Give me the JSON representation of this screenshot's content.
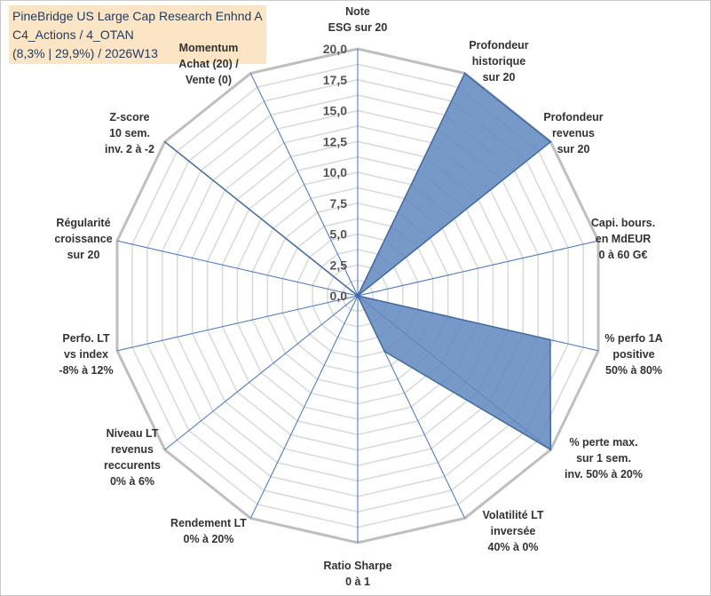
{
  "title_lines": [
    "PineBridge US Large Cap Research Enhnd A",
    "C4_Actions / 4_OTAN",
    "(8,3% | 29,9%) / 2026W13"
  ],
  "chart_data": {
    "type": "radar",
    "title": "PineBridge US Large Cap Research Enhnd A",
    "rlim": [
      0,
      20
    ],
    "grid": true,
    "tick_values": [
      0,
      2.5,
      5,
      7.5,
      10,
      12.5,
      15,
      17.5,
      20
    ],
    "tick_labels": [
      "0,0",
      "2,5",
      "5,0",
      "7,5",
      "10,0",
      "12,5",
      "15,0",
      "17,5",
      "20,0"
    ],
    "axes": [
      {
        "label": [
          "Note",
          "ESG sur 20"
        ],
        "value": 0
      },
      {
        "label": [
          "Profondeur",
          "historique",
          "sur 20"
        ],
        "value": 20
      },
      {
        "label": [
          "Profondeur",
          "revenus",
          "sur 20"
        ],
        "value": 20
      },
      {
        "label": [
          "Capi. bours.",
          "en MdEUR",
          "0 à 60 G€"
        ],
        "value": 0
      },
      {
        "label": [
          "% perfo 1A",
          "positive",
          "50% à 80%"
        ],
        "value": 16
      },
      {
        "label": [
          "% perte max.",
          "sur 1 sem.",
          "inv. 50% à 20%"
        ],
        "value": 20
      },
      {
        "label": [
          "Volatilité LT",
          "inversée",
          "40% à 0%"
        ],
        "value": 5
      },
      {
        "label": [
          "Ratio Sharpe",
          "0 à 1"
        ],
        "value": 0
      },
      {
        "label": [
          "Rendement LT",
          "0% à 20%"
        ],
        "value": 0
      },
      {
        "label": [
          "Niveau LT",
          "revenus",
          "reccurents",
          "0% à 6%"
        ],
        "value": 0
      },
      {
        "label": [
          "Perfo. LT",
          "vs index",
          "-8% à 12%"
        ],
        "value": 0
      },
      {
        "label": [
          "Régularité",
          "croissance",
          "sur 20"
        ],
        "value": 0
      },
      {
        "label": [
          "Z-score",
          "10 sem.",
          "inv. 2 à -2"
        ],
        "value": 20
      },
      {
        "label": [
          "Momentum",
          "Achat (20) /",
          "Vente (0)"
        ],
        "value": 0
      }
    ],
    "series": [
      {
        "values": [
          0,
          20,
          20,
          0,
          16,
          20,
          5,
          0,
          0,
          0,
          0,
          0,
          20,
          0
        ]
      }
    ],
    "colors": {
      "fill": "#5f87bd",
      "fill_opacity": 0.85,
      "stroke": "#3f6aa3",
      "spoke": "#4472c4",
      "grid": "#d9d9d9",
      "outer_grid": "#bfbfbf",
      "title_bg": "#fbe5c4",
      "title_text": "#1f3a5f",
      "momentum_label": "#b8a776"
    }
  }
}
